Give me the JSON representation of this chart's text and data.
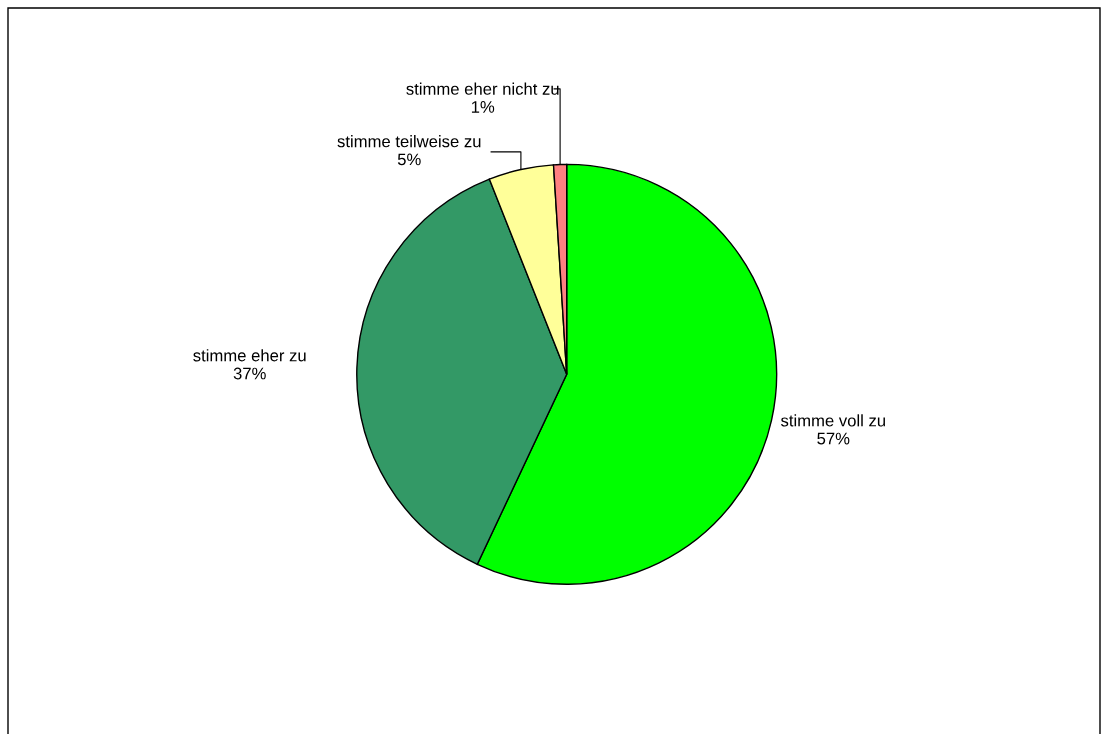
{
  "chart_data": {
    "type": "pie",
    "categories": [
      "stimme voll zu",
      "stimme eher zu",
      "stimme teilweise zu",
      "stimme eher nicht zu"
    ],
    "values": [
      57,
      37,
      5,
      1
    ],
    "value_labels": [
      "57%",
      "37%",
      "5%",
      "1%"
    ],
    "colors": [
      "#00ff00",
      "#339966",
      "#ffff99",
      "#ff8080"
    ],
    "legend": false
  }
}
